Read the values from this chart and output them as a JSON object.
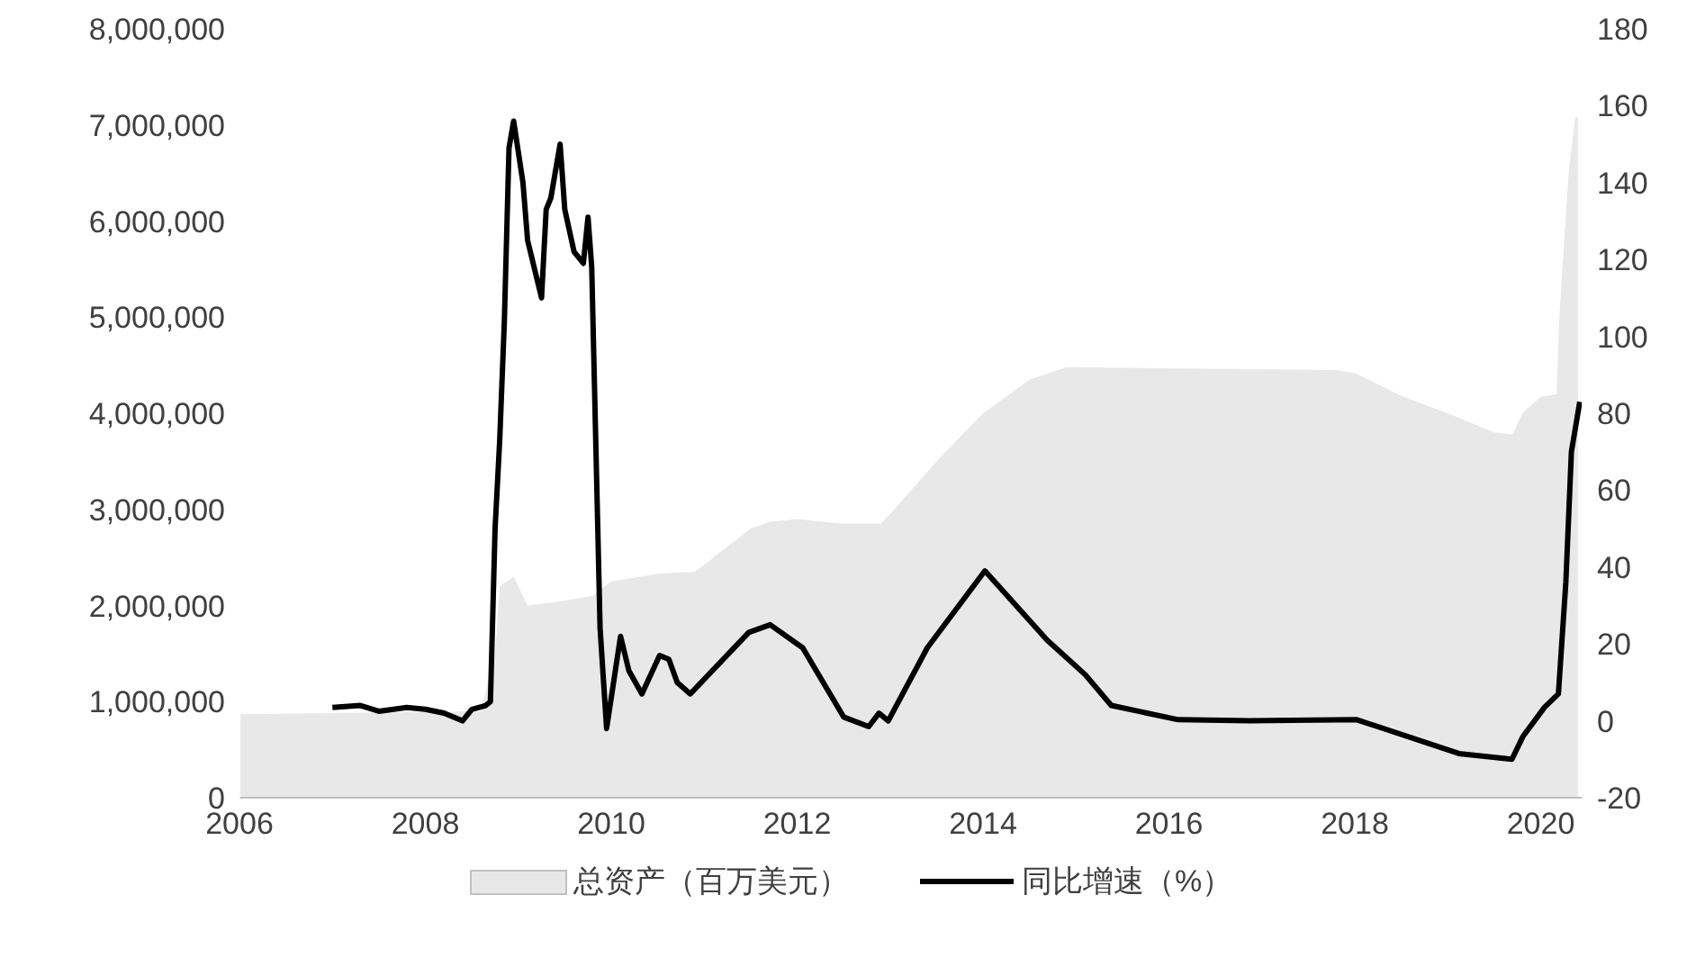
{
  "chart_data": {
    "type": "line",
    "xlim": [
      2006,
      2020.45
    ],
    "xticks": [
      2006,
      2008,
      2010,
      2012,
      2014,
      2016,
      2018,
      2020
    ],
    "ylim": [
      0,
      8000000
    ],
    "yticks": [
      {
        "value": 0,
        "label": "0"
      },
      {
        "value": 1000000,
        "label": "1,000,000"
      },
      {
        "value": 2000000,
        "label": "2,000,000"
      },
      {
        "value": 3000000,
        "label": "3,000,000"
      },
      {
        "value": 4000000,
        "label": "4,000,000"
      },
      {
        "value": 5000000,
        "label": "5,000,000"
      },
      {
        "value": 6000000,
        "label": "6,000,000"
      },
      {
        "value": 7000000,
        "label": "7,000,000"
      },
      {
        "value": 8000000,
        "label": "8,000,000"
      }
    ],
    "y2lim": [
      -20,
      180
    ],
    "y2ticks": [
      -20,
      0,
      20,
      40,
      60,
      80,
      100,
      120,
      140,
      160,
      180
    ],
    "grid": false,
    "legend": "bottom",
    "series": [
      {
        "name": "总资产（百万美元）",
        "type": "area",
        "color": "#e8e8e8",
        "x": [
          2006,
          2008.6,
          2008.75,
          2008.8,
          2008.95,
          2009.1,
          2009.5,
          2009.8,
          2010,
          2010.5,
          2010.9,
          2011.5,
          2011.7,
          2012,
          2012.5,
          2012.9,
          2013,
          2013.5,
          2014,
          2014.5,
          2014.9,
          2017.8,
          2018,
          2018.5,
          2019,
          2019.5,
          2019.7,
          2019.8,
          2020,
          2020.17,
          2020.2,
          2020.3,
          2020.37,
          2020.4
        ],
        "values": [
          870000,
          900000,
          1500000,
          2200000,
          2300000,
          2000000,
          2050000,
          2100000,
          2250000,
          2330000,
          2350000,
          2800000,
          2870000,
          2900000,
          2850000,
          2850000,
          2950000,
          3500000,
          4000000,
          4350000,
          4480000,
          4450000,
          4420000,
          4180000,
          4000000,
          3800000,
          3780000,
          4000000,
          4170000,
          4200000,
          5000000,
          6500000,
          7080000,
          7080000
        ]
      },
      {
        "name": "同比增速（%）",
        "axis": "y2",
        "color": "#000000",
        "x": [
          2007,
          2007.3,
          2007.5,
          2007.8,
          2008,
          2008.2,
          2008.4,
          2008.5,
          2008.65,
          2008.7,
          2008.75,
          2008.8,
          2008.85,
          2008.9,
          2008.95,
          2009.05,
          2009.1,
          2009.2,
          2009.25,
          2009.3,
          2009.35,
          2009.45,
          2009.5,
          2009.6,
          2009.7,
          2009.75,
          2009.79,
          2009.88,
          2009.95,
          2010.1,
          2010.19,
          2010.33,
          2010.52,
          2010.62,
          2010.71,
          2010.85,
          2011.48,
          2011.71,
          2012.06,
          2012.5,
          2012.77,
          2012.88,
          2012.98,
          2013.4,
          2014.02,
          2014.69,
          2015.1,
          2015.38,
          2016.1,
          2016.87,
          2018.02,
          2019.12,
          2019.69,
          2019.81,
          2020.04,
          2020.19,
          2020.27,
          2020.33,
          2020.42
        ],
        "values": [
          3.5,
          4,
          2.5,
          3.5,
          3,
          2,
          0,
          3,
          4,
          5,
          50,
          73,
          104,
          149,
          156,
          140,
          125,
          115,
          110,
          133,
          136,
          150,
          133,
          122,
          119,
          131,
          118,
          24,
          -2,
          22,
          13,
          7,
          17,
          16,
          10,
          7,
          23,
          25,
          19,
          1,
          -1.5,
          2,
          0,
          19,
          39,
          21,
          12,
          4,
          0.3,
          0,
          0.3,
          -8.5,
          -10,
          -4,
          3.5,
          7,
          36,
          70,
          83
        ]
      }
    ]
  }
}
